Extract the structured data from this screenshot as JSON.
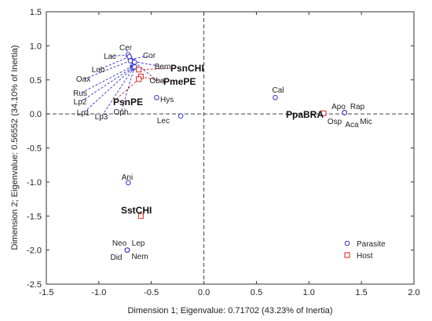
{
  "chart_data": {
    "type": "scatter",
    "title": "",
    "xlabel": "Dimension 1; Eigenvalue: 0.71702 (43.23% of Inertia)",
    "ylabel": "Dimension 2; Eigenvalue: 0.56552 (34.10% of Inertia)",
    "xlim": [
      -1.5,
      2.0
    ],
    "ylim": [
      -2.5,
      1.5
    ],
    "xticks": [
      "-1.5",
      "-1.0",
      "-0.5",
      "0.0",
      "0.5",
      "1.0",
      "1.5",
      "2.0"
    ],
    "yticks": [
      "1.5",
      "1.0",
      "0.5",
      "0.0",
      "-0.5",
      "-1.0",
      "-1.5",
      "-2.0",
      "-2.5"
    ],
    "grid": false,
    "reference_lines": {
      "x": 0,
      "y": 0,
      "style": "dashed"
    },
    "legend": {
      "placement": "bottom-right",
      "entries": [
        {
          "name": "Parasite",
          "marker": "circle",
          "color": "#3333cc"
        },
        {
          "name": "Host",
          "marker": "square",
          "color": "#dd2222"
        }
      ]
    },
    "series": [
      {
        "name": "Parasite",
        "marker": "circle",
        "color": "#3333cc",
        "points": [
          {
            "label": "Cer",
            "x": -0.72,
            "y": 0.86
          },
          {
            "label": "Lac",
            "x": -0.72,
            "y": 0.87
          },
          {
            "label": "Cor",
            "x": -0.7,
            "y": 0.8
          },
          {
            "label": "Lob",
            "x": -0.71,
            "y": 0.84
          },
          {
            "label": "Bom",
            "x": -0.67,
            "y": 0.77
          },
          {
            "label": "Oax",
            "x": -0.7,
            "y": 0.78
          },
          {
            "label": "Oba",
            "x": -0.66,
            "y": 0.76
          },
          {
            "label": "Rus",
            "x": -0.68,
            "y": 0.7
          },
          {
            "label": "Lp2",
            "x": -0.68,
            "y": 0.68
          },
          {
            "label": "Lp1",
            "x": -0.68,
            "y": 0.67
          },
          {
            "label": "Lp3",
            "x": -0.67,
            "y": 0.68
          },
          {
            "label": "Oph",
            "x": -0.66,
            "y": 0.69
          },
          {
            "label": "Hys",
            "x": -0.45,
            "y": 0.24
          },
          {
            "label": "Lec",
            "x": -0.22,
            "y": -0.03
          },
          {
            "label": "Cal",
            "x": 0.68,
            "y": 0.24
          },
          {
            "label": "Apo",
            "x": 1.34,
            "y": 0.02
          },
          {
            "label": "Rap",
            "x": 1.34,
            "y": 0.02
          },
          {
            "label": "Osp",
            "x": 1.34,
            "y": 0.02
          },
          {
            "label": "Aca",
            "x": 1.34,
            "y": 0.02
          },
          {
            "label": "Mic",
            "x": 1.34,
            "y": 0.02
          },
          {
            "label": "Ani",
            "x": -0.72,
            "y": -1.01
          },
          {
            "label": "Neo",
            "x": -0.73,
            "y": -2.0
          },
          {
            "label": "Lep",
            "x": -0.73,
            "y": -2.0
          },
          {
            "label": "Did",
            "x": -0.73,
            "y": -2.0
          },
          {
            "label": "Nem",
            "x": -0.73,
            "y": -2.0
          }
        ]
      },
      {
        "name": "Host",
        "marker": "square",
        "color": "#dd2222",
        "points": [
          {
            "label": "PsnCHI",
            "x": -0.62,
            "y": 0.65
          },
          {
            "label": "PmePE",
            "x": -0.6,
            "y": 0.55
          },
          {
            "label": "PsnPE",
            "x": -0.62,
            "y": 0.51
          },
          {
            "label": "PpaBRA",
            "x": 1.14,
            "y": 0.01
          },
          {
            "label": "SstCHI",
            "x": -0.6,
            "y": -1.5
          }
        ]
      }
    ]
  }
}
